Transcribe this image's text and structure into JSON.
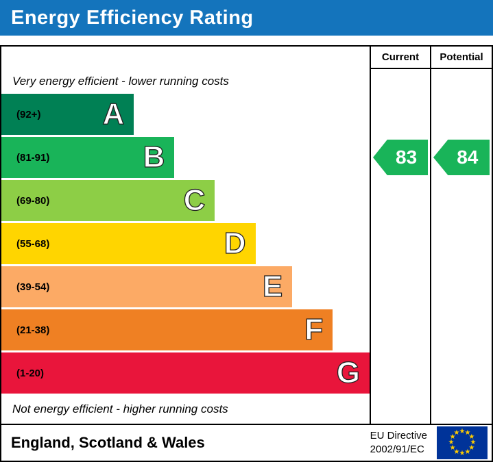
{
  "title": "Energy Efficiency Rating",
  "columns": {
    "current": "Current",
    "potential": "Potential"
  },
  "captions": {
    "top": "Very energy efficient - lower running costs",
    "bottom": "Not energy efficient - higher running costs"
  },
  "bands": [
    {
      "letter": "A",
      "range": "(92+)",
      "color": "#008054",
      "width_pct": 36
    },
    {
      "letter": "B",
      "range": "(81-91)",
      "color": "#19b459",
      "width_pct": 47
    },
    {
      "letter": "C",
      "range": "(69-80)",
      "color": "#8dce46",
      "width_pct": 58
    },
    {
      "letter": "D",
      "range": "(55-68)",
      "color": "#ffd500",
      "width_pct": 69
    },
    {
      "letter": "E",
      "range": "(39-54)",
      "color": "#fcaa65",
      "width_pct": 79
    },
    {
      "letter": "F",
      "range": "(21-38)",
      "color": "#ef8023",
      "width_pct": 90
    },
    {
      "letter": "G",
      "range": "(1-20)",
      "color": "#e9153b",
      "width_pct": 100
    }
  ],
  "ratings": {
    "current": {
      "value": "83",
      "color": "#19b459"
    },
    "potential": {
      "value": "84",
      "color": "#19b459"
    }
  },
  "footer": {
    "region": "England, Scotland & Wales",
    "directive_line1": "EU Directive",
    "directive_line2": "2002/91/EC"
  },
  "colors": {
    "header_bg": "#1474bc",
    "header_text": "#ffffff",
    "flag_bg": "#003399",
    "flag_star": "#ffcc00"
  },
  "chart_data": {
    "type": "bar",
    "title": "Energy Efficiency Rating",
    "categories": [
      "A",
      "B",
      "C",
      "D",
      "E",
      "F",
      "G"
    ],
    "band_ranges": [
      "92+",
      "81-91",
      "69-80",
      "55-68",
      "39-54",
      "21-38",
      "1-20"
    ],
    "band_colors": [
      "#008054",
      "#19b459",
      "#8dce46",
      "#ffd500",
      "#fcaa65",
      "#ef8023",
      "#e9153b"
    ],
    "series": [
      {
        "name": "Current",
        "values": [
          83
        ]
      },
      {
        "name": "Potential",
        "values": [
          84
        ]
      }
    ],
    "value_range": [
      1,
      100
    ],
    "annotations": [
      "Very energy efficient - lower running costs",
      "Not energy efficient - higher running costs",
      "England, Scotland & Wales",
      "EU Directive 2002/91/EC"
    ]
  }
}
